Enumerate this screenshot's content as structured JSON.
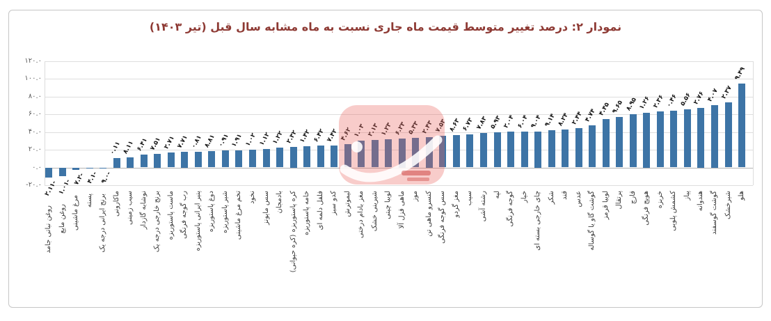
{
  "title": "نمودار ۲: درصد تغییر متوسط قیمت ماه جاری نسبت به ماه مشابه سال قبل (تیر ۱۴۰۳)",
  "colors": {
    "bar": "#3d74a6",
    "title": "#8e3a34",
    "gridline": "#dedede",
    "zero_axis": "#b3b3b3",
    "watermark": "rgba(232,95,90,0.32)"
  },
  "y_axis": {
    "min": -20,
    "max": 120,
    "ticks": [
      {
        "value": 120,
        "label": "۱۲۰.۰"
      },
      {
        "value": 100,
        "label": "۱۰۰.۰"
      },
      {
        "value": 80,
        "label": "۸۰.۰"
      },
      {
        "value": 60,
        "label": "۶۰.۰"
      },
      {
        "value": 40,
        "label": "۴۰.۰"
      },
      {
        "value": 20,
        "label": "۲۰.۰"
      },
      {
        "value": 0,
        "label": "۰.۰"
      },
      {
        "value": -20,
        "label": "-۲۰.۰"
      }
    ]
  },
  "chart_data": {
    "type": "bar",
    "title": "نمودار ۲: درصد تغییر متوسط قیمت ماه جاری نسبت به ماه مشابه سال قبل (تیر ۱۴۰۳)",
    "xlabel": "",
    "ylabel": "",
    "ylim": [
      -20,
      120
    ],
    "grid": true,
    "legend": "none",
    "categories": [
      "روغن نباتی جامد",
      "روغن مایع",
      "مرغ ماشینی",
      "پسته",
      "برنج ایرانی درجه یک",
      "ماکارونی",
      "سیب زمینی",
      "نوشابه گازدار",
      "برنج خارجی درجه یک",
      "ماست پاستوریزه",
      "رب گوجه فرنگی",
      "پنیر ایرانی پاستوریزه",
      "دوغ پاستوریزه",
      "شیر پاستوریزه",
      "تخم مرغ ماشینی",
      "نخود",
      "سس مایونز",
      "بادمجان",
      "کره پاستوریزه (کره حیوانی)",
      "خامه پاستوریزه",
      "فلفل دلمه ای",
      "کدو سبز",
      "لیموترش",
      "مغز بادام درختی",
      "شیرینی خشک",
      "لوبیا چیتی",
      "ماهی قزل آلا",
      "موز",
      "کنسرو ماهی تن",
      "سس گوجه فرنگی",
      "مغز گردو",
      "سیب",
      "رشته آشی",
      "لپه",
      "گوجه فرنگی",
      "خیار",
      "چای خارجی بسته ای",
      "شکر",
      "قند",
      "عدس",
      "گوشت گاو یا گوساله",
      "لوبیا قرمز",
      "پرتقال",
      "قارچ",
      "هویج فرنگی",
      "خربزه",
      "کشمش پلویی",
      "پیاز",
      "هندوانه",
      "گوشت گوسفند",
      "شیرخشک",
      "هلو"
    ],
    "values": [
      -11.2,
      -10.1,
      -2.7,
      -1.4,
      -0.9,
      11.0,
      11.8,
      14.6,
      15.7,
      17.2,
      17.7,
      18.0,
      18.8,
      19.0,
      19.1,
      20.1,
      21.1,
      22.1,
      23.2,
      24.1,
      24.6,
      24.7,
      26.4,
      30.1,
      31.2,
      32.1,
      32.6,
      33.5,
      34.2,
      35.7,
      36.8,
      37.6,
      38.7,
      39.5,
      40.2,
      40.6,
      40.9,
      41.9,
      42.8,
      44.2,
      47.4,
      54.4,
      56.9,
      59.8,
      62.1,
      63.2,
      64.0,
      65.5,
      67.2,
      70.4,
      73.2,
      94.9
    ],
    "value_labels": [
      "-۱۱.۲",
      "-۱۰.۱",
      "-۲.۷",
      "-۱.۴",
      "-۰.۹",
      "۱۱.۰",
      "۱۱.۸",
      "۱۴.۶",
      "۱۵.۷",
      "۱۷.۲",
      "۱۷.۷",
      "۱۸.۰",
      "۱۸.۸",
      "۱۹.۰",
      "۱۹.۱",
      "۲۰.۱",
      "۲۱.۱",
      "۲۲.۱",
      "۲۳.۲",
      "۲۴.۱",
      "۲۴.۶",
      "۲۴.۷",
      "۲۶.۴",
      "۳۰.۱",
      "۳۱.۲",
      "۳۲.۱",
      "۳۲.۶",
      "۳۳.۵",
      "۳۴.۲",
      "۳۵.۷",
      "۳۶.۸",
      "۳۷.۶",
      "۳۸.۷",
      "۳۹.۵",
      "۴۰.۲",
      "۴۰.۶",
      "۴۰.۹",
      "۴۱.۹",
      "۴۲.۸",
      "۴۴.۲",
      "۴۷.۴",
      "۵۴.۴",
      "۵۶.۹",
      "۵۹.۸",
      "۶۲.۱",
      "۶۳.۲",
      "۶۴.۰",
      "۶۵.۵",
      "۶۷.۲",
      "۷۰.۴",
      "۷۳.۲",
      "۹۴.۹"
    ]
  },
  "watermark": {
    "name": "red-logo-stamp"
  }
}
